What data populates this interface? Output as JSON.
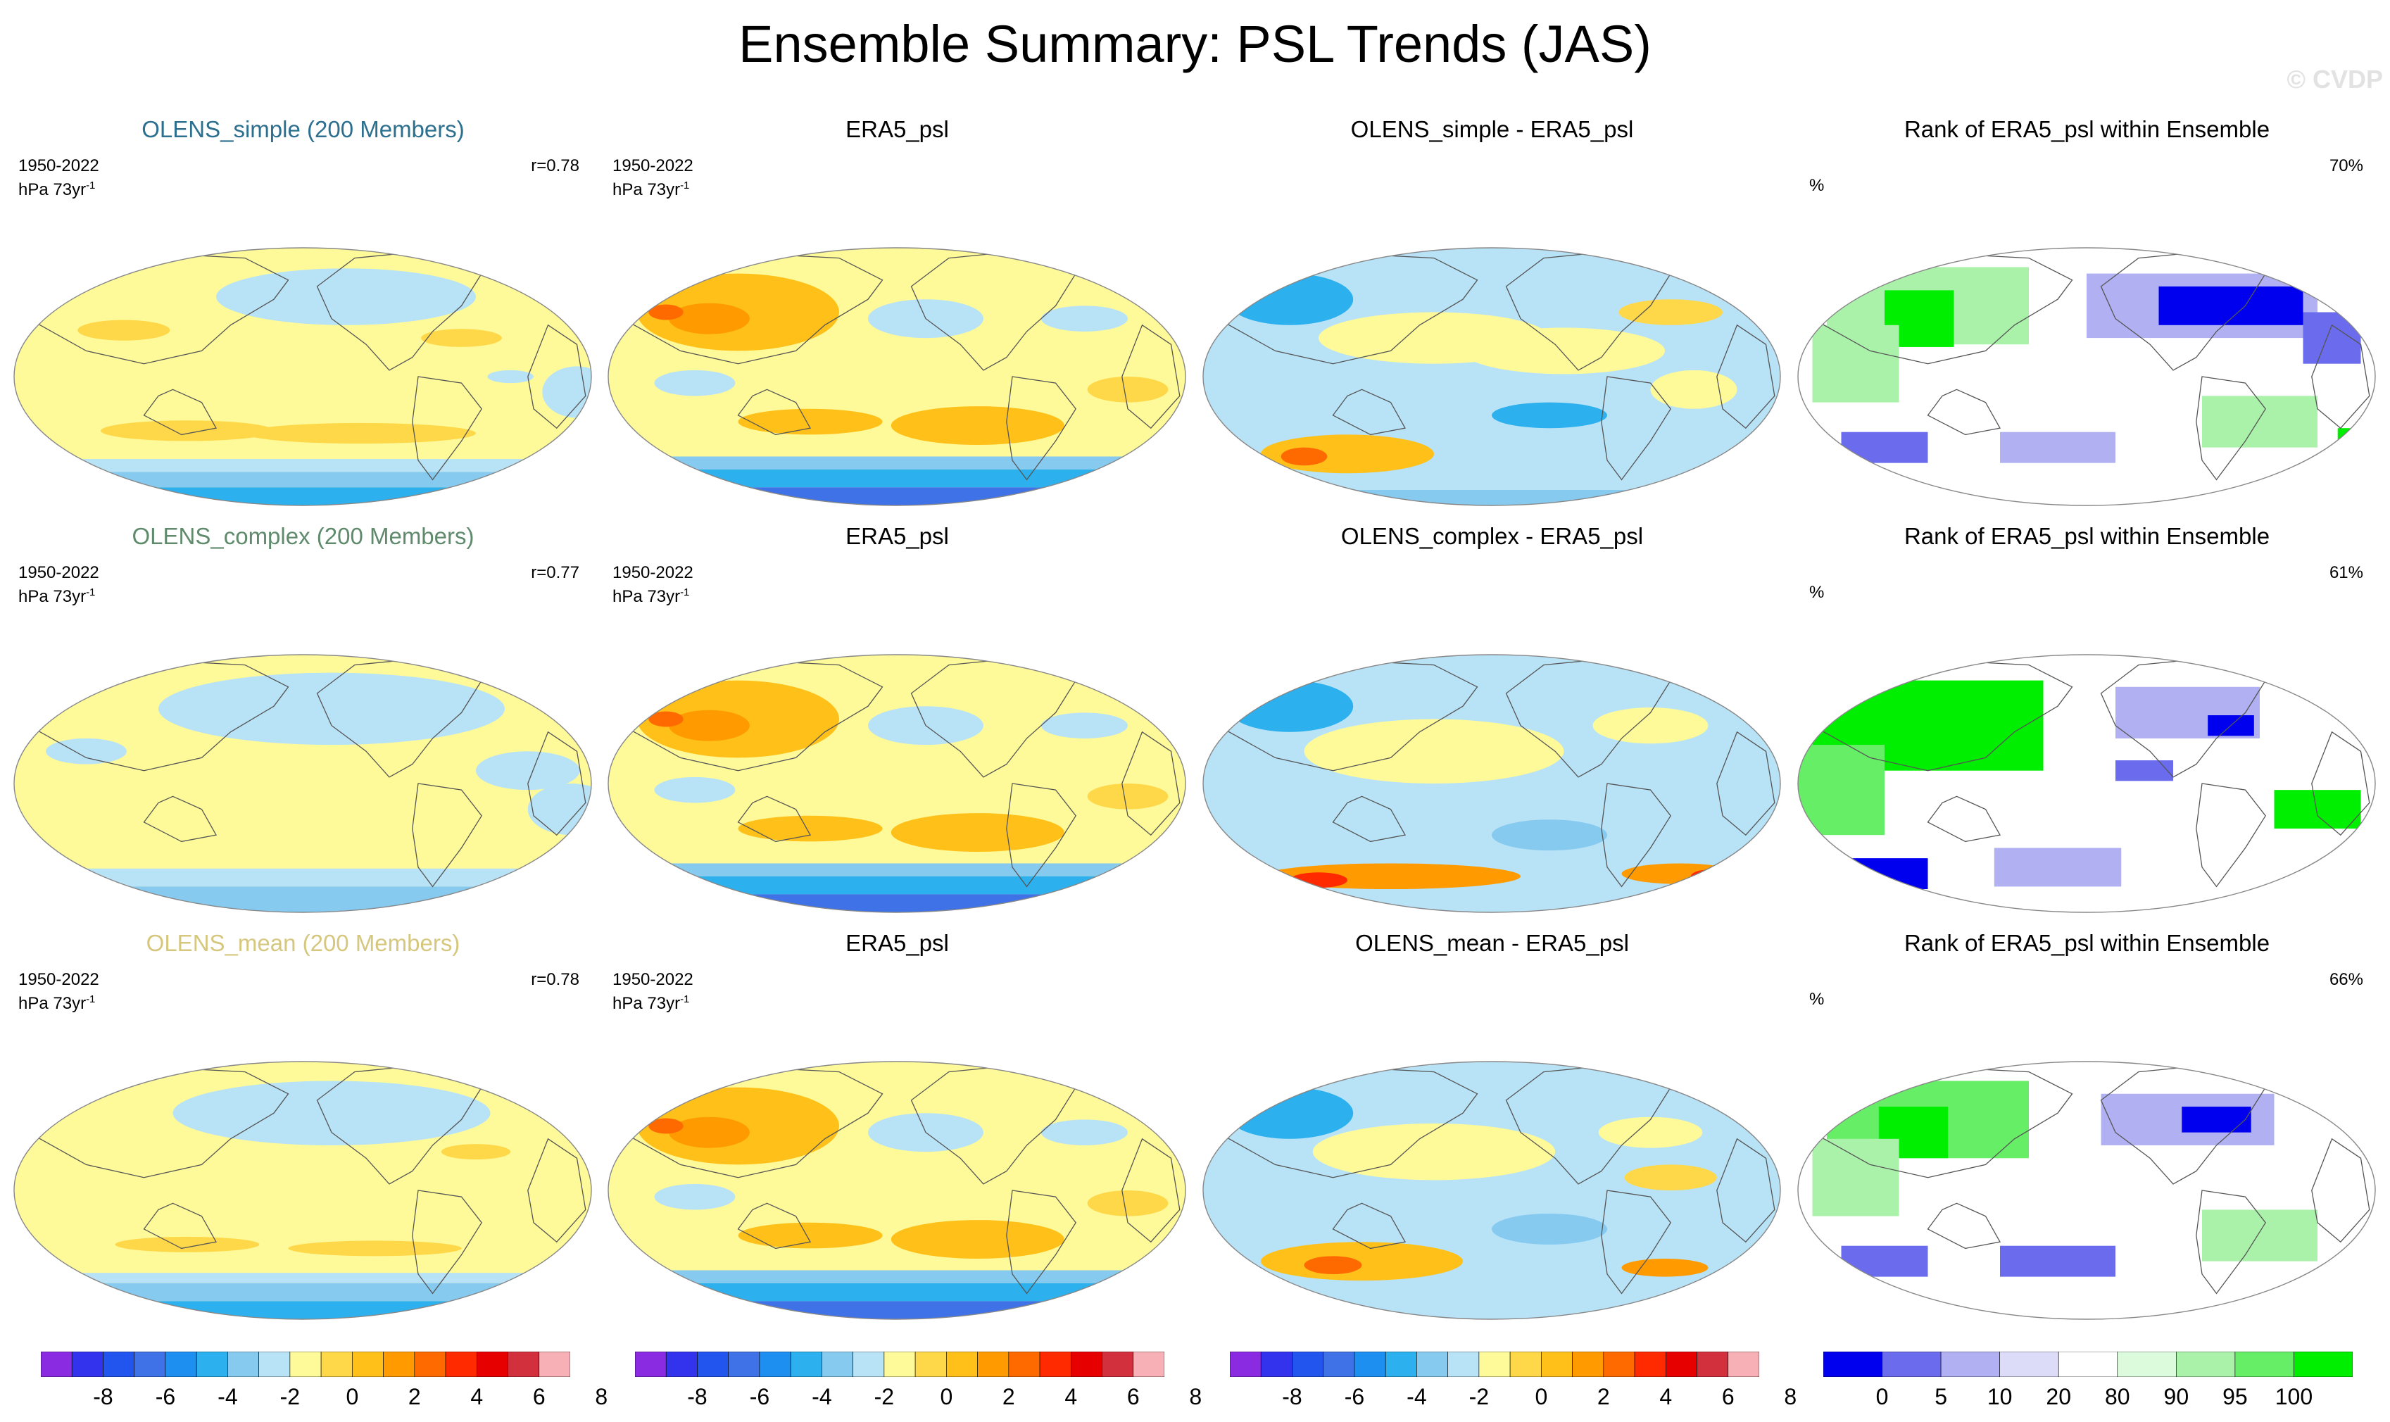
{
  "title": "Ensemble Summary: PSL Trends (JAS)",
  "watermark": "© CVDP",
  "colors": {
    "member_simple": "#2c6f8e",
    "member_complex": "#5f8a6c",
    "member_mean": "#d6c77e",
    "diverging": [
      "#8a2be2",
      "#3333ee",
      "#2255ee",
      "#3f72e6",
      "#1d8ff0",
      "#2cb0ee",
      "#86caf0",
      "#b8e2f6",
      "#fffa99",
      "#ffd84a",
      "#ffc01a",
      "#ff9a00",
      "#ff6a00",
      "#ff2a00",
      "#e60000",
      "#d2303c",
      "#f7b0b5"
    ],
    "rank": [
      "#0000ee",
      "#6b6bee",
      "#b0b0f2",
      "#dcdcf8",
      "#ffffff",
      "#dcfadc",
      "#aaf2aa",
      "#66ee66",
      "#00ee00"
    ],
    "land_outline": "#555555"
  },
  "rows": [
    {
      "member_title": "OLENS_simple (200 Members)",
      "member_color": "#2c6f8e",
      "period": "1950-2022",
      "units": "hPa 73yr",
      "units_sup": "-1",
      "r": "r=0.78",
      "obs_title": "ERA5_psl",
      "diff_title": "OLENS_simple - ERA5_psl",
      "rank_title": "Rank of ERA5_psl within Ensemble",
      "rank_unit": "%",
      "rank_pct": "70%"
    },
    {
      "member_title": "OLENS_complex (200 Members)",
      "member_color": "#5f8a6c",
      "period": "1950-2022",
      "units": "hPa 73yr",
      "units_sup": "-1",
      "r": "r=0.77",
      "obs_title": "ERA5_psl",
      "diff_title": "OLENS_complex - ERA5_psl",
      "rank_title": "Rank of ERA5_psl within Ensemble",
      "rank_unit": "%",
      "rank_pct": "61%"
    },
    {
      "member_title": "OLENS_mean (200 Members)",
      "member_color": "#d6c77e",
      "period": "1950-2022",
      "units": "hPa 73yr",
      "units_sup": "-1",
      "r": "r=0.78",
      "obs_title": "ERA5_psl",
      "diff_title": "OLENS_mean - ERA5_psl",
      "rank_title": "Rank of ERA5_psl within Ensemble",
      "rank_unit": "%",
      "rank_pct": "66%"
    }
  ],
  "colorbars": {
    "trend_ticks": [
      "-8",
      "-6",
      "-4",
      "-2",
      "0",
      "2",
      "4",
      "6",
      "8"
    ],
    "rank_ticks": [
      "0",
      "5",
      "10",
      "20",
      "80",
      "90",
      "95",
      "100"
    ]
  }
}
